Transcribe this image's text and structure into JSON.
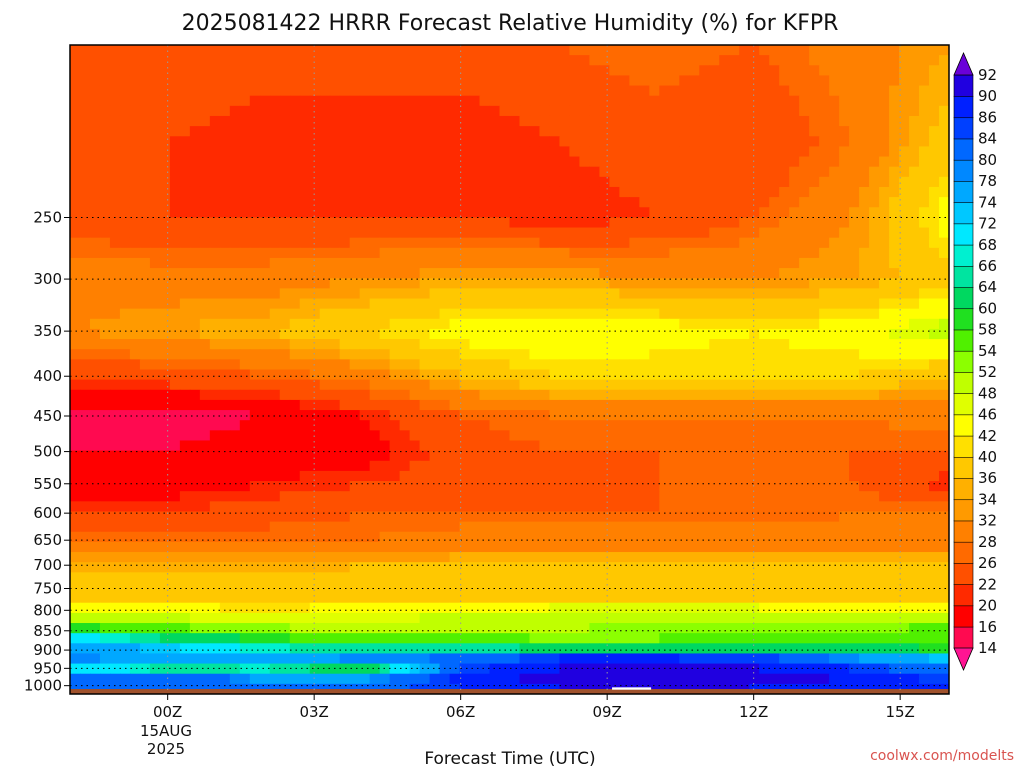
{
  "chart_data": {
    "type": "heatmap",
    "title": "2025081422 HRRR Forecast Relative Humidity (%) for KFPR",
    "xlabel": "Forecast Time (UTC)",
    "ylabel": "",
    "credit": "coolwx.com/modelts",
    "x_ticks": [
      {
        "label": "00Z",
        "hour": 0
      },
      {
        "label": "03Z",
        "hour": 3
      },
      {
        "label": "06Z",
        "hour": 6
      },
      {
        "label": "09Z",
        "hour": 9
      },
      {
        "label": "12Z",
        "hour": 12
      },
      {
        "label": "15Z",
        "hour": 15
      }
    ],
    "x_date_line1": "15AUG",
    "x_date_line2": "2025",
    "x_range": [
      -2,
      16
    ],
    "y_scale": "log",
    "y_range": [
      1025,
      150
    ],
    "y_ticks": [
      250,
      300,
      350,
      400,
      450,
      500,
      550,
      600,
      650,
      700,
      750,
      800,
      850,
      900,
      950,
      1000
    ],
    "grid": true,
    "ground_color": "#a0522d",
    "colorbar": {
      "levels": [
        14,
        16,
        20,
        22,
        26,
        28,
        32,
        34,
        36,
        40,
        42,
        46,
        48,
        52,
        54,
        58,
        60,
        64,
        66,
        68,
        72,
        74,
        78,
        80,
        84,
        86,
        90,
        92
      ],
      "colors": [
        "#ff1493",
        "#ff0a50",
        "#ff0000",
        "#ff2a00",
        "#ff5000",
        "#ff6a00",
        "#ff8000",
        "#ff9a00",
        "#ffb000",
        "#ffc800",
        "#ffe000",
        "#ffff00",
        "#e0ff00",
        "#c0ff00",
        "#8cff00",
        "#50f000",
        "#20e020",
        "#00d860",
        "#00e4a0",
        "#00f0d0",
        "#00e8ff",
        "#00c8ff",
        "#00a8ff",
        "#0088ff",
        "#0068ff",
        "#0040ff",
        "#0020ff",
        "#2000e0",
        "#5000d0"
      ],
      "under_color": "#ff1493",
      "over_color": "#6a00d8"
    },
    "levels_hpa": [
      1000,
      975,
      950,
      925,
      900,
      875,
      850,
      825,
      800,
      775,
      750,
      700,
      650,
      600,
      550,
      500,
      450,
      400,
      350,
      300,
      250,
      200,
      150
    ],
    "hours": [
      -2,
      0,
      2,
      4,
      6,
      8,
      10,
      12,
      14,
      16
    ],
    "rh": [
      [
        80,
        84,
        82,
        82,
        86,
        90,
        92,
        90,
        88,
        86
      ],
      [
        82,
        84,
        76,
        76,
        88,
        92,
        92,
        92,
        90,
        84
      ],
      [
        72,
        64,
        66,
        60,
        84,
        90,
        90,
        90,
        86,
        80
      ],
      [
        80,
        74,
        76,
        80,
        82,
        88,
        88,
        88,
        80,
        74
      ],
      [
        78,
        74,
        68,
        66,
        66,
        66,
        66,
        64,
        62,
        60
      ],
      [
        72,
        66,
        60,
        58,
        56,
        54,
        54,
        56,
        56,
        58
      ],
      [
        62,
        56,
        54,
        52,
        52,
        52,
        54,
        54,
        54,
        56
      ],
      [
        52,
        50,
        48,
        48,
        50,
        50,
        52,
        52,
        52,
        50
      ],
      [
        46,
        44,
        42,
        44,
        46,
        48,
        48,
        48,
        46,
        46
      ],
      [
        40,
        40,
        38,
        40,
        40,
        40,
        40,
        40,
        40,
        40
      ],
      [
        38,
        38,
        38,
        38,
        38,
        38,
        38,
        38,
        38,
        38
      ],
      [
        34,
        34,
        34,
        36,
        36,
        36,
        36,
        36,
        36,
        36
      ],
      [
        28,
        28,
        28,
        28,
        30,
        30,
        30,
        30,
        30,
        30
      ],
      [
        22,
        22,
        24,
        26,
        26,
        26,
        26,
        26,
        28,
        28
      ],
      [
        18,
        18,
        20,
        22,
        24,
        24,
        26,
        26,
        26,
        20
      ],
      [
        16,
        16,
        18,
        18,
        24,
        26,
        26,
        26,
        26,
        26
      ],
      [
        14,
        14,
        16,
        20,
        26,
        28,
        28,
        28,
        28,
        30
      ],
      [
        22,
        24,
        26,
        30,
        36,
        40,
        40,
        40,
        40,
        36
      ],
      [
        32,
        34,
        36,
        40,
        44,
        46,
        44,
        42,
        44,
        50
      ],
      [
        30,
        30,
        30,
        32,
        34,
        34,
        32,
        32,
        34,
        38
      ],
      [
        24,
        22,
        22,
        22,
        22,
        20,
        22,
        26,
        32,
        44
      ],
      [
        22,
        22,
        20,
        20,
        20,
        22,
        24,
        22,
        28,
        38
      ],
      [
        26,
        26,
        24,
        24,
        24,
        26,
        28,
        26,
        30,
        34
      ]
    ],
    "annotations": [
      {
        "type": "rect",
        "x0": 9.1,
        "x1": 9.9,
        "p0": 1005,
        "p1": 1012,
        "color": "#ffffff"
      }
    ]
  }
}
